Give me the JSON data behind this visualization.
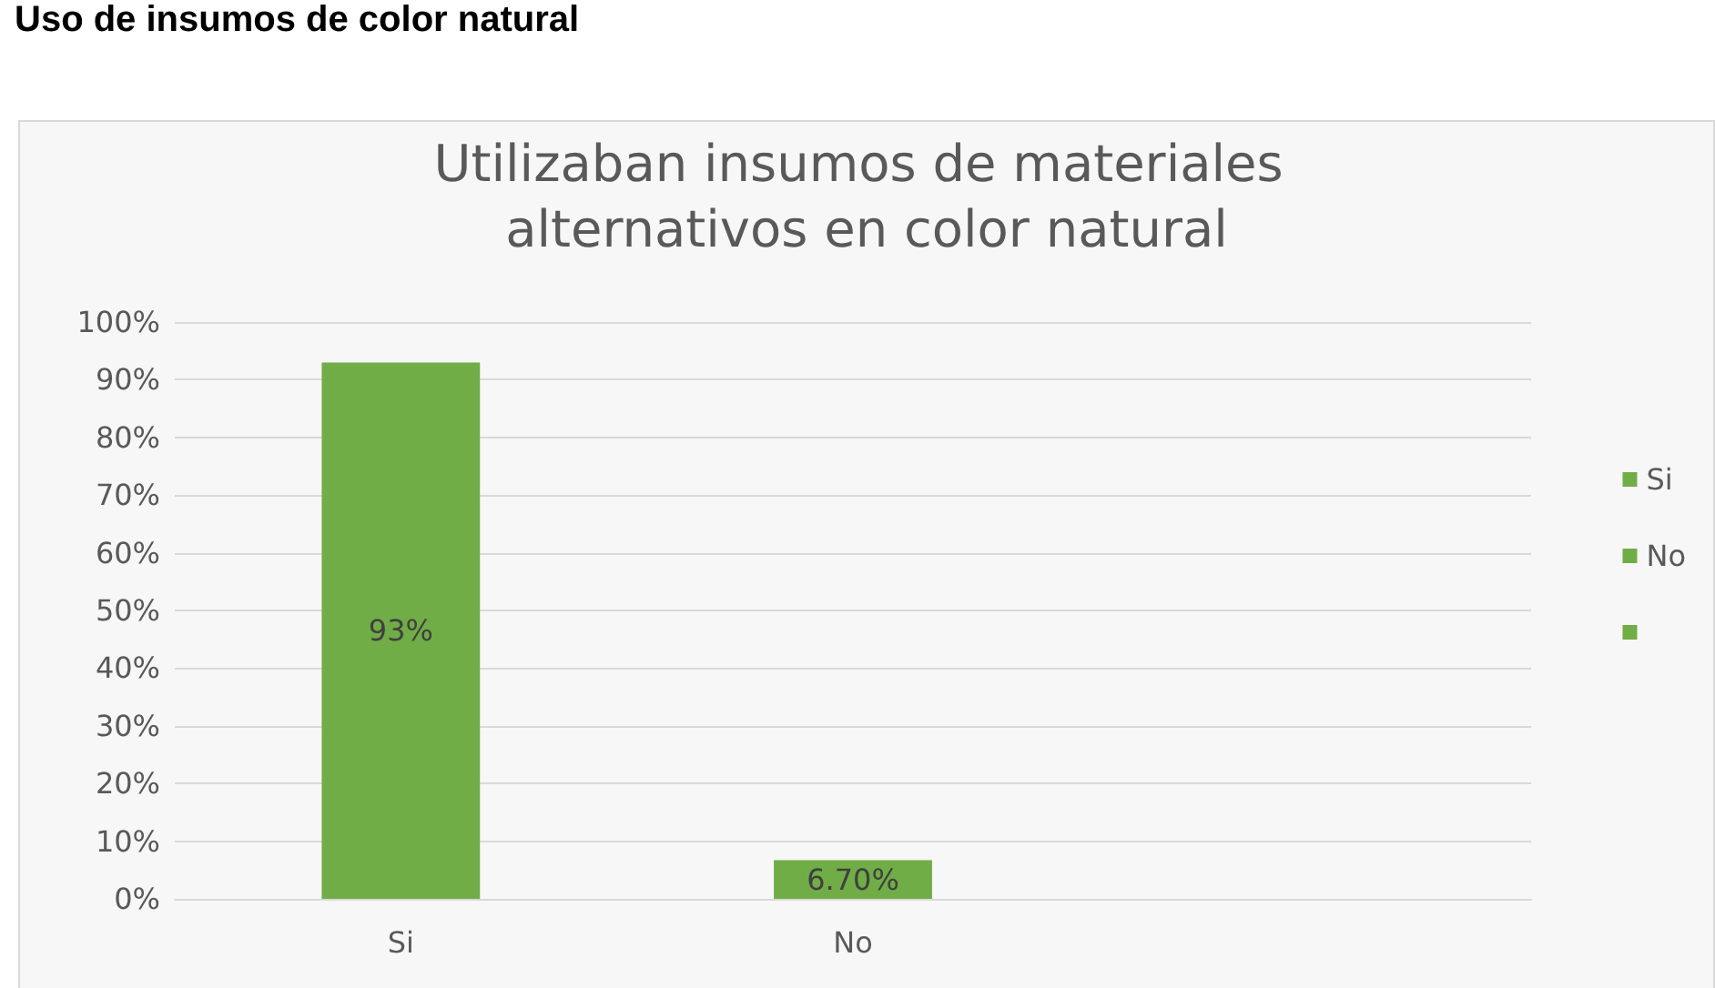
{
  "chart_data": {
    "type": "bar",
    "title": "Utilizaban insumos de materiales alternativos en color natural",
    "annotations": [
      "Uso de insumos de color natural"
    ],
    "categories": [
      "Si",
      "No",
      null
    ],
    "stacked": true,
    "series": [
      {
        "name": "Si",
        "color": "#70ad47",
        "values": [
          93,
          null,
          null
        ],
        "value_labels": [
          "93%",
          null,
          null
        ]
      },
      {
        "name": "No",
        "color": "#70ad47",
        "values": [
          null,
          6.7,
          null
        ],
        "value_labels": [
          null,
          "6.70%",
          null
        ]
      },
      {
        "color": "#70ad47",
        "values": [
          null,
          null,
          null
        ]
      }
    ],
    "ylim": [
      0,
      100
    ],
    "yticks": [
      {
        "value": 0,
        "label": "0%"
      },
      {
        "value": 10,
        "label": "10%"
      },
      {
        "value": 20,
        "label": "20%"
      },
      {
        "value": 30,
        "label": "30%"
      },
      {
        "value": 40,
        "label": "40%"
      },
      {
        "value": 50,
        "label": "50%"
      },
      {
        "value": 60,
        "label": "60%"
      },
      {
        "value": 70,
        "label": "70%"
      },
      {
        "value": 80,
        "label": "80%"
      },
      {
        "value": 90,
        "label": "90%"
      },
      {
        "value": 100,
        "label": "100%"
      }
    ],
    "grid": "y",
    "legend": "right"
  }
}
